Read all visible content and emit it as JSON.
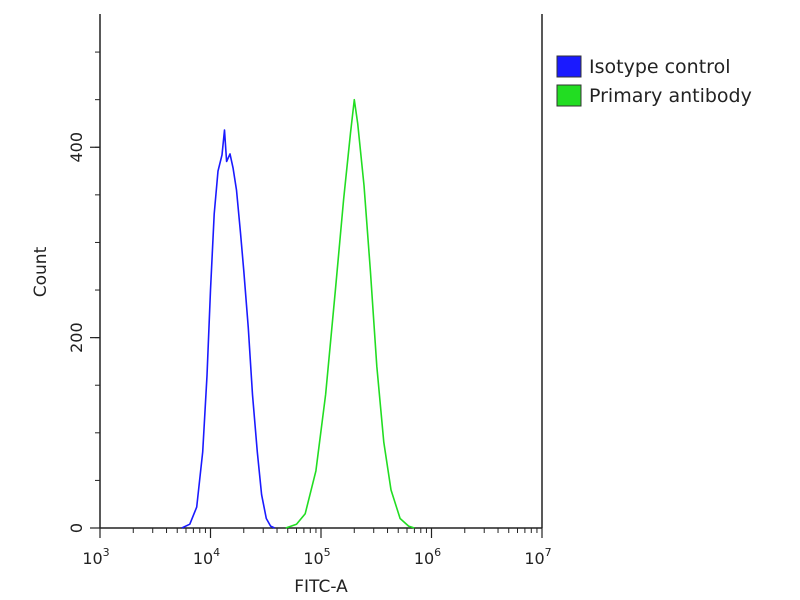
{
  "chart_data": {
    "type": "line",
    "xlabel": "FITC-A",
    "ylabel": "Count",
    "x_scale": "log",
    "xlim": [
      1000,
      10000000
    ],
    "ylim": [
      0,
      540
    ],
    "x_ticks": [
      {
        "value": 1000,
        "base": "10",
        "exp": "3"
      },
      {
        "value": 10000,
        "base": "10",
        "exp": "4"
      },
      {
        "value": 100000,
        "base": "10",
        "exp": "5"
      },
      {
        "value": 1000000,
        "base": "10",
        "exp": "6"
      },
      {
        "value": 10000000,
        "base": "10",
        "exp": "7"
      }
    ],
    "y_ticks": [
      {
        "value": 0,
        "label": "0"
      },
      {
        "value": 200,
        "label": "200"
      },
      {
        "value": 400,
        "label": "400"
      }
    ],
    "legend_position": "right-top",
    "series": [
      {
        "name": "Isotype control",
        "color": "#1a1aff",
        "points": [
          [
            5500,
            0
          ],
          [
            6500,
            4
          ],
          [
            7500,
            22
          ],
          [
            8500,
            80
          ],
          [
            9300,
            160
          ],
          [
            10000,
            250
          ],
          [
            10800,
            330
          ],
          [
            11700,
            375
          ],
          [
            12700,
            392
          ],
          [
            13400,
            418
          ],
          [
            14000,
            385
          ],
          [
            15000,
            393
          ],
          [
            16000,
            378
          ],
          [
            17200,
            355
          ],
          [
            18700,
            310
          ],
          [
            20000,
            270
          ],
          [
            22000,
            210
          ],
          [
            24000,
            140
          ],
          [
            26500,
            80
          ],
          [
            29000,
            35
          ],
          [
            32000,
            10
          ],
          [
            35000,
            2
          ],
          [
            38000,
            0
          ]
        ]
      },
      {
        "name": "Primary antibody",
        "color": "#22dd22",
        "points": [
          [
            48000,
            0
          ],
          [
            60000,
            4
          ],
          [
            72000,
            15
          ],
          [
            90000,
            60
          ],
          [
            110000,
            140
          ],
          [
            135000,
            250
          ],
          [
            160000,
            345
          ],
          [
            185000,
            415
          ],
          [
            200000,
            450
          ],
          [
            215000,
            425
          ],
          [
            245000,
            360
          ],
          [
            280000,
            270
          ],
          [
            320000,
            170
          ],
          [
            370000,
            90
          ],
          [
            430000,
            40
          ],
          [
            520000,
            10
          ],
          [
            620000,
            2
          ],
          [
            700000,
            0
          ]
        ]
      }
    ]
  }
}
